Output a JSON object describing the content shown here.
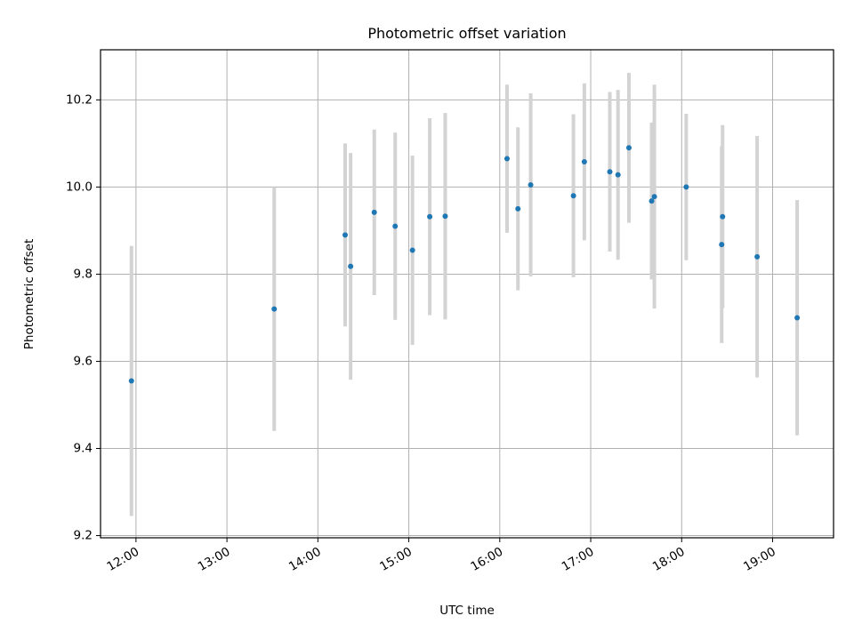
{
  "chart_data": {
    "type": "scatter",
    "title": "Photometric offset variation",
    "xlabel": "UTC time",
    "ylabel": "Photometric offset",
    "x_unit": "UTC hours",
    "xlim": [
      11.61,
      19.67
    ],
    "ylim": [
      9.195,
      10.315
    ],
    "x_ticks": [
      {
        "value": 12,
        "label": "12:00"
      },
      {
        "value": 13,
        "label": "13:00"
      },
      {
        "value": 14,
        "label": "14:00"
      },
      {
        "value": 15,
        "label": "15:00"
      },
      {
        "value": 16,
        "label": "16:00"
      },
      {
        "value": 17,
        "label": "17:00"
      },
      {
        "value": 18,
        "label": "18:00"
      },
      {
        "value": 19,
        "label": "19:00"
      }
    ],
    "y_ticks": [
      {
        "value": 9.2,
        "label": "9.2"
      },
      {
        "value": 9.4,
        "label": "9.4"
      },
      {
        "value": 9.6,
        "label": "9.6"
      },
      {
        "value": 9.8,
        "label": "9.8"
      },
      {
        "value": 10.0,
        "label": "10.0"
      },
      {
        "value": 10.2,
        "label": "10.2"
      }
    ],
    "grid": true,
    "colors": {
      "point": "#1f77b4",
      "errorbar": "#d3d3d3",
      "grid": "#b0b0b0"
    },
    "points": [
      {
        "x": 11.95,
        "y": 9.555,
        "err": 0.31
      },
      {
        "x": 13.52,
        "y": 9.72,
        "err": 0.28
      },
      {
        "x": 14.3,
        "y": 9.89,
        "err": 0.21
      },
      {
        "x": 14.36,
        "y": 9.818,
        "err": 0.26
      },
      {
        "x": 14.62,
        "y": 9.942,
        "err": 0.19
      },
      {
        "x": 14.85,
        "y": 9.91,
        "err": 0.215
      },
      {
        "x": 15.04,
        "y": 9.855,
        "err": 0.217
      },
      {
        "x": 15.23,
        "y": 9.932,
        "err": 0.226
      },
      {
        "x": 15.4,
        "y": 9.933,
        "err": 0.237
      },
      {
        "x": 16.08,
        "y": 10.065,
        "err": 0.17
      },
      {
        "x": 16.2,
        "y": 9.95,
        "err": 0.187
      },
      {
        "x": 16.34,
        "y": 10.005,
        "err": 0.21
      },
      {
        "x": 16.81,
        "y": 9.98,
        "err": 0.187
      },
      {
        "x": 16.93,
        "y": 10.058,
        "err": 0.18
      },
      {
        "x": 17.21,
        "y": 10.035,
        "err": 0.183
      },
      {
        "x": 17.3,
        "y": 10.028,
        "err": 0.195
      },
      {
        "x": 17.42,
        "y": 10.09,
        "err": 0.172
      },
      {
        "x": 17.67,
        "y": 9.968,
        "err": 0.18
      },
      {
        "x": 17.7,
        "y": 9.978,
        "err": 0.257
      },
      {
        "x": 18.05,
        "y": 10.0,
        "err": 0.168
      },
      {
        "x": 18.44,
        "y": 9.868,
        "err": 0.226
      },
      {
        "x": 18.45,
        "y": 9.932,
        "err": 0.21
      },
      {
        "x": 18.83,
        "y": 9.84,
        "err": 0.277
      },
      {
        "x": 19.27,
        "y": 9.7,
        "err": 0.27
      }
    ]
  }
}
